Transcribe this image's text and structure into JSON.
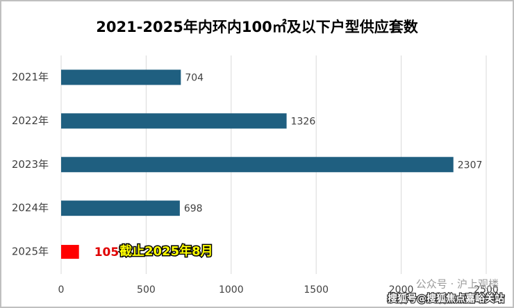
{
  "chart_data": {
    "type": "bar",
    "orientation": "horizontal",
    "title": "2021-2025年内环内100㎡及以下户型供应套数",
    "categories": [
      "2021年",
      "2022年",
      "2023年",
      "2024年",
      "2025年"
    ],
    "values": [
      704,
      1326,
      2307,
      698,
      105
    ],
    "colors": [
      "#1f5f80",
      "#1f5f80",
      "#1f5f80",
      "#1f5f80",
      "#ff0000"
    ],
    "label_colors": [
      "#404040",
      "#404040",
      "#404040",
      "#404040",
      "#e00000"
    ],
    "annotation": "截止2025年8月",
    "xlim": [
      0,
      2500
    ],
    "xticks": [
      0,
      500,
      1000,
      1500,
      2000,
      2500
    ],
    "grid": true,
    "watermarks": [
      "公众号 · 沪上观楼",
      "搜狐号@搜狐焦点嘉峪关站"
    ]
  }
}
